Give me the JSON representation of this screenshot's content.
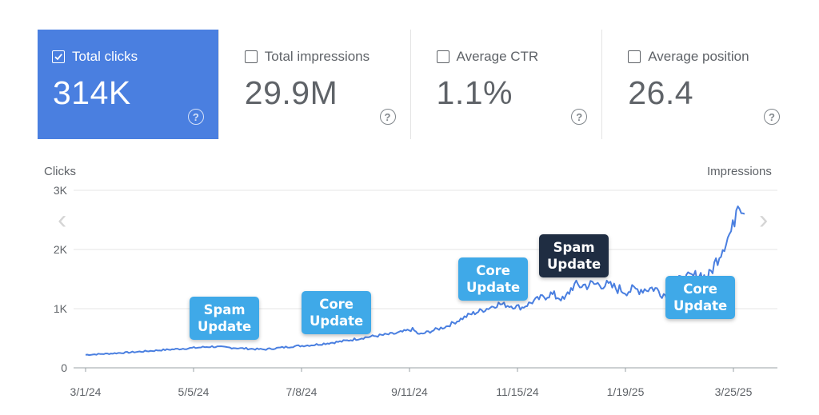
{
  "cards": [
    {
      "label": "Total clicks",
      "value": "314K",
      "checked": true
    },
    {
      "label": "Total impressions",
      "value": "29.9M",
      "checked": false
    },
    {
      "label": "Average CTR",
      "value": "1.1%",
      "checked": false
    },
    {
      "label": "Average position",
      "value": "26.4",
      "checked": false
    }
  ],
  "help_glyph": "?",
  "nav": {
    "prev": "‹",
    "next": "›"
  },
  "chart_data": {
    "type": "line",
    "ylabel_left": "Clicks",
    "ylabel_right": "Impressions",
    "yticks": [
      "0",
      "1K",
      "2K",
      "3K"
    ],
    "ylim": [
      0,
      3000
    ],
    "xticks": [
      "3/1/24",
      "5/5/24",
      "7/8/24",
      "9/11/24",
      "11/15/24",
      "1/19/25",
      "3/25/25"
    ],
    "xlim": [
      "2024-03-01",
      "2025-03-27"
    ],
    "grid": true,
    "color": "#4a7fe0",
    "series": [
      {
        "x": [
          "2024-03-01",
          "2024-03-15",
          "2024-04-01",
          "2024-04-15",
          "2024-05-01",
          "2024-05-15",
          "2024-06-01",
          "2024-06-15",
          "2024-07-01",
          "2024-07-15",
          "2024-08-01",
          "2024-08-15",
          "2024-09-01",
          "2024-09-11",
          "2024-09-15",
          "2024-10-01",
          "2024-10-15",
          "2024-10-25",
          "2024-11-01",
          "2024-11-15",
          "2024-11-20",
          "2024-12-01",
          "2024-12-10",
          "2024-12-15",
          "2025-01-01",
          "2025-01-15",
          "2025-02-01",
          "2025-02-10",
          "2025-02-15",
          "2025-03-01",
          "2025-03-05",
          "2025-03-10",
          "2025-03-15",
          "2025-03-20",
          "2025-03-23",
          "2025-03-25",
          "2025-03-27"
        ],
        "y": [
          220,
          240,
          270,
          300,
          330,
          360,
          330,
          310,
          360,
          390,
          450,
          520,
          580,
          650,
          560,
          700,
          900,
          1000,
          1080,
          1020,
          1100,
          1250,
          1150,
          1380,
          1420,
          1300,
          1350,
          1200,
          1450,
          1580,
          1500,
          1800,
          2100,
          2350,
          2900,
          2750,
          2600
        ]
      }
    ],
    "annotations": [
      {
        "line1": "Spam",
        "line2": "Update",
        "date": "2024-06-01",
        "style": "light"
      },
      {
        "line1": "Core",
        "line2": "Update",
        "date": "2024-07-20",
        "style": "light"
      },
      {
        "line1": "Core",
        "line2": "Update",
        "date": "2024-11-15",
        "style": "light"
      },
      {
        "line1": "Spam",
        "line2": "Update",
        "date": "2024-12-20",
        "style": "dark"
      },
      {
        "line1": "Core",
        "line2": "Update",
        "date": "2025-03-01",
        "style": "light"
      }
    ]
  }
}
